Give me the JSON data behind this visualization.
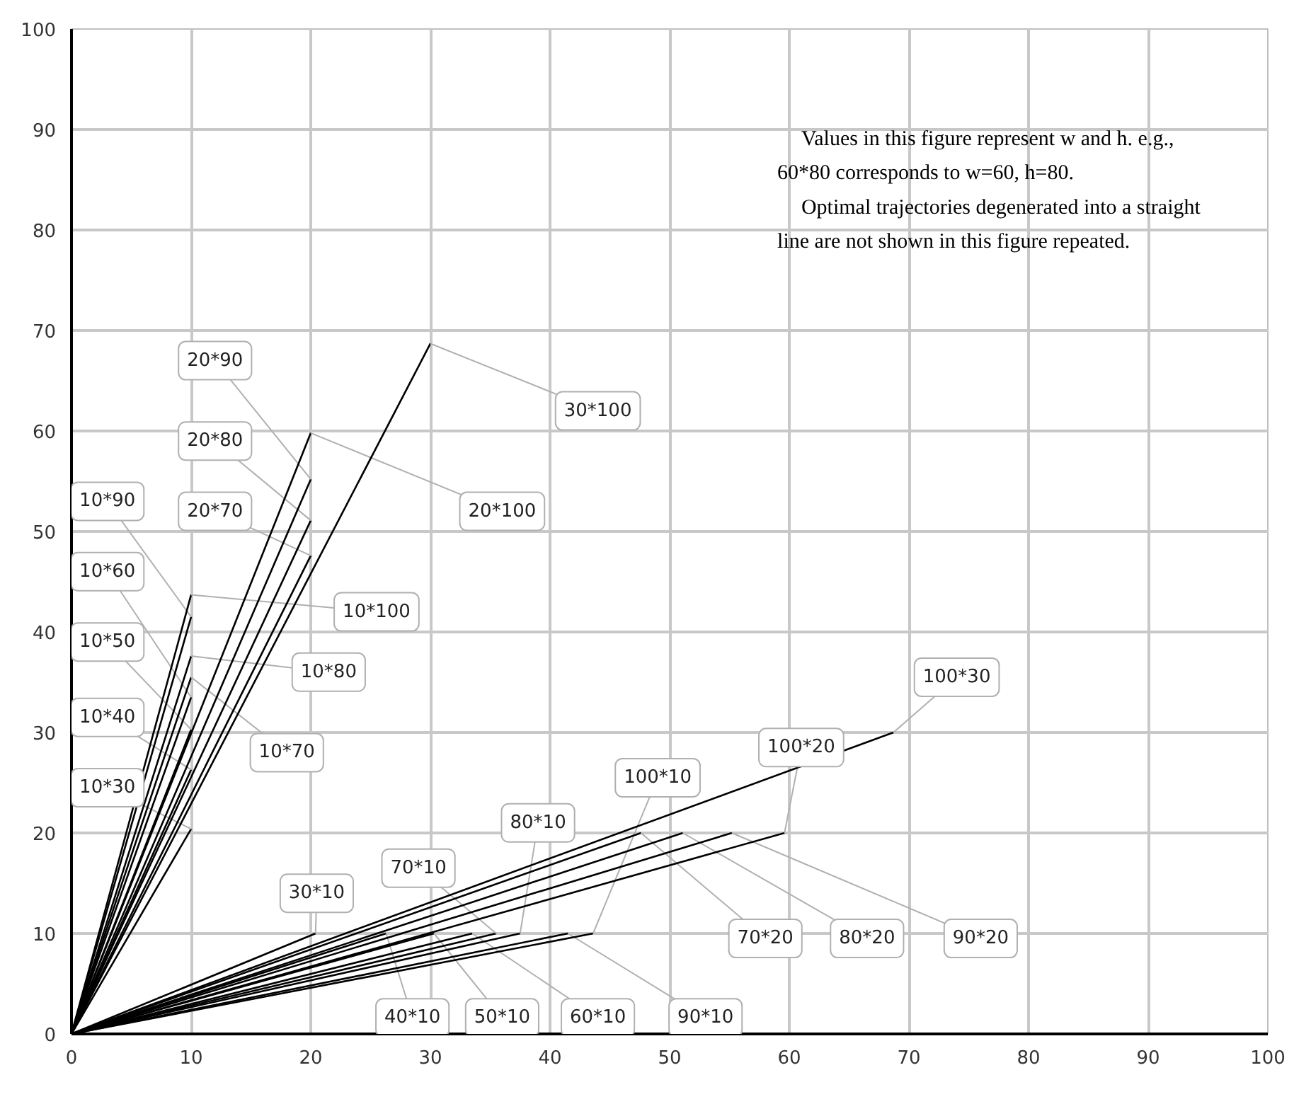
{
  "chart_data": {
    "type": "line",
    "xlim": [
      0,
      100
    ],
    "ylim": [
      0,
      100
    ],
    "xticks": [
      0,
      10,
      20,
      30,
      40,
      50,
      60,
      70,
      80,
      90,
      100
    ],
    "yticks": [
      0,
      10,
      20,
      30,
      40,
      50,
      60,
      70,
      80,
      90,
      100
    ],
    "grid": true,
    "legend": false,
    "marker": "none",
    "line_style": "solid",
    "annotations": [
      "Values in this figure represent w and h. e.g., 60*80 corresponds to w=60, h=80.",
      "Optimal trajectories degenerated into a straight line are not shown in this figure repeated."
    ],
    "series": [
      {
        "name": "10*30",
        "color": "#000000",
        "x": [
          0,
          10
        ],
        "values": [
          0,
          20.4
        ]
      },
      {
        "name": "10*40",
        "color": "#000000",
        "x": [
          0,
          10
        ],
        "values": [
          0,
          26.3
        ]
      },
      {
        "name": "10*50",
        "color": "#000000",
        "x": [
          0,
          10
        ],
        "values": [
          0,
          30.3
        ]
      },
      {
        "name": "10*60",
        "color": "#000000",
        "x": [
          0,
          10
        ],
        "values": [
          0,
          33.5
        ]
      },
      {
        "name": "10*70",
        "color": "#000000",
        "x": [
          0,
          10
        ],
        "values": [
          0,
          35.5
        ]
      },
      {
        "name": "10*80",
        "color": "#000000",
        "x": [
          0,
          10
        ],
        "values": [
          0,
          37.6
        ]
      },
      {
        "name": "10*90",
        "color": "#000000",
        "x": [
          0,
          10
        ],
        "values": [
          0,
          41.5
        ]
      },
      {
        "name": "10*100",
        "color": "#000000",
        "x": [
          0,
          10
        ],
        "values": [
          0,
          43.7
        ]
      },
      {
        "name": "20*70",
        "color": "#000000",
        "x": [
          0,
          20
        ],
        "values": [
          0,
          47.6
        ]
      },
      {
        "name": "20*80",
        "color": "#000000",
        "x": [
          0,
          20
        ],
        "values": [
          0,
          51.1
        ]
      },
      {
        "name": "20*90",
        "color": "#000000",
        "x": [
          0,
          20
        ],
        "values": [
          0,
          55.2
        ]
      },
      {
        "name": "20*100",
        "color": "#000000",
        "x": [
          0,
          20
        ],
        "values": [
          0,
          59.8
        ]
      },
      {
        "name": "30*100",
        "color": "#000000",
        "x": [
          0,
          30
        ],
        "values": [
          0,
          68.7
        ]
      },
      {
        "name": "30*10",
        "color": "#000000",
        "x": [
          0,
          20.4
        ],
        "values": [
          0,
          10
        ]
      },
      {
        "name": "40*10",
        "color": "#000000",
        "x": [
          0,
          26.3
        ],
        "values": [
          0,
          10
        ]
      },
      {
        "name": "50*10",
        "color": "#000000",
        "x": [
          0,
          30.3
        ],
        "values": [
          0,
          10
        ]
      },
      {
        "name": "60*10",
        "color": "#000000",
        "x": [
          0,
          33.5
        ],
        "values": [
          0,
          10
        ]
      },
      {
        "name": "70*10",
        "color": "#000000",
        "x": [
          0,
          35.5
        ],
        "values": [
          0,
          10
        ]
      },
      {
        "name": "80*10",
        "color": "#000000",
        "x": [
          0,
          37.5
        ],
        "values": [
          0,
          10
        ]
      },
      {
        "name": "90*10",
        "color": "#000000",
        "x": [
          0,
          41.5
        ],
        "values": [
          0,
          10
        ]
      },
      {
        "name": "100*10",
        "color": "#000000",
        "x": [
          0,
          43.6
        ],
        "values": [
          0,
          10
        ]
      },
      {
        "name": "70*20",
        "color": "#000000",
        "x": [
          0,
          47.6
        ],
        "values": [
          0,
          20
        ]
      },
      {
        "name": "80*20",
        "color": "#000000",
        "x": [
          0,
          51.1
        ],
        "values": [
          0,
          20
        ]
      },
      {
        "name": "90*20",
        "color": "#000000",
        "x": [
          0,
          55.2
        ],
        "values": [
          0,
          20
        ]
      },
      {
        "name": "100*20",
        "color": "#000000",
        "x": [
          0,
          59.6
        ],
        "values": [
          0,
          20
        ]
      },
      {
        "name": "100*30",
        "color": "#000000",
        "x": [
          0,
          68.7
        ],
        "values": [
          0,
          30
        ]
      }
    ]
  }
}
